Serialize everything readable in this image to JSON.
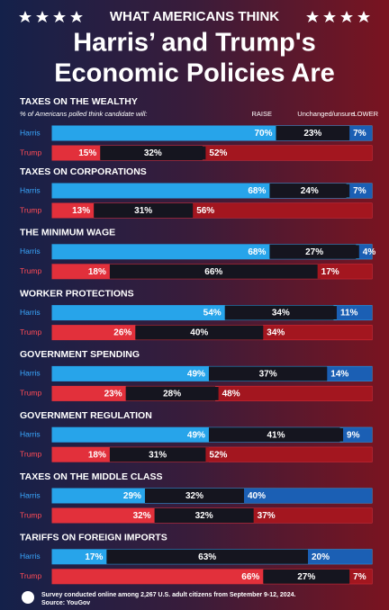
{
  "chart_data": {
    "type": "stacked-bar",
    "kicker": "WHAT AMERICANS THINK",
    "title": [
      "Harris’ and Trump's",
      "Economic Policies Are"
    ],
    "subtitle": "% of Americans polled think candidate will:",
    "legend": [
      "RAISE",
      "Unchanged/unsure",
      "LOWER"
    ],
    "xlim": [
      0,
      100
    ],
    "groups": [
      {
        "title": "TAXES ON THE WEALTHY",
        "rows": [
          {
            "name": "Harris",
            "colors": [
              "#27a4ea",
              "#15151f",
              "#1b5fb4"
            ],
            "values": [
              70,
              23,
              7
            ],
            "value_labels": [
              "70%",
              "23%",
              "7%"
            ]
          },
          {
            "name": "Trump",
            "colors": [
              "#e2303b",
              "#15151f",
              "#a3161f"
            ],
            "values": [
              15,
              32,
              52
            ],
            "value_labels": [
              "15%",
              "32%",
              "52%"
            ]
          }
        ]
      },
      {
        "title": "TAXES ON CORPORATIONS",
        "rows": [
          {
            "name": "Harris",
            "colors": [
              "#27a4ea",
              "#15151f",
              "#1b5fb4"
            ],
            "values": [
              68,
              24,
              7
            ],
            "value_labels": [
              "68%",
              "24%",
              "7%"
            ]
          },
          {
            "name": "Trump",
            "colors": [
              "#e2303b",
              "#15151f",
              "#a3161f"
            ],
            "values": [
              13,
              31,
              56
            ],
            "value_labels": [
              "13%",
              "31%",
              "56%"
            ]
          }
        ]
      },
      {
        "title": "THE MINIMUM WAGE",
        "rows": [
          {
            "name": "Harris",
            "colors": [
              "#27a4ea",
              "#15151f",
              "#1b5fb4"
            ],
            "values": [
              68,
              27,
              4
            ],
            "value_labels": [
              "68%",
              "27%",
              "4%"
            ]
          },
          {
            "name": "Trump",
            "colors": [
              "#e2303b",
              "#15151f",
              "#a3161f"
            ],
            "values": [
              18,
              66,
              17
            ],
            "value_labels": [
              "18%",
              "66%",
              "17%"
            ]
          }
        ]
      },
      {
        "title": "WORKER PROTECTIONS",
        "rows": [
          {
            "name": "Harris",
            "colors": [
              "#27a4ea",
              "#15151f",
              "#1b5fb4"
            ],
            "values": [
              54,
              34,
              11
            ],
            "value_labels": [
              "54%",
              "34%",
              "11%"
            ]
          },
          {
            "name": "Trump",
            "colors": [
              "#e2303b",
              "#15151f",
              "#a3161f"
            ],
            "values": [
              26,
              40,
              34
            ],
            "value_labels": [
              "26%",
              "40%",
              "34%"
            ]
          }
        ]
      },
      {
        "title": "GOVERNMENT SPENDING",
        "rows": [
          {
            "name": "Harris",
            "colors": [
              "#27a4ea",
              "#15151f",
              "#1b5fb4"
            ],
            "values": [
              49,
              37,
              14
            ],
            "value_labels": [
              "49%",
              "37%",
              "14%"
            ]
          },
          {
            "name": "Trump",
            "colors": [
              "#e2303b",
              "#15151f",
              "#a3161f"
            ],
            "values": [
              23,
              28,
              48
            ],
            "value_labels": [
              "23%",
              "28%",
              "48%"
            ]
          }
        ]
      },
      {
        "title": "GOVERNMENT REGULATION",
        "rows": [
          {
            "name": "Harris",
            "colors": [
              "#27a4ea",
              "#15151f",
              "#1b5fb4"
            ],
            "values": [
              49,
              41,
              9
            ],
            "value_labels": [
              "49%",
              "41%",
              "9%"
            ]
          },
          {
            "name": "Trump",
            "colors": [
              "#e2303b",
              "#15151f",
              "#a3161f"
            ],
            "values": [
              18,
              31,
              52
            ],
            "value_labels": [
              "18%",
              "31%",
              "52%"
            ]
          }
        ]
      },
      {
        "title": "TAXES ON THE MIDDLE CLASS",
        "rows": [
          {
            "name": "Harris",
            "colors": [
              "#27a4ea",
              "#15151f",
              "#1b5fb4"
            ],
            "values": [
              29,
              32,
              40
            ],
            "value_labels": [
              "29%",
              "32%",
              "40%"
            ]
          },
          {
            "name": "Trump",
            "colors": [
              "#e2303b",
              "#15151f",
              "#a3161f"
            ],
            "values": [
              32,
              32,
              37
            ],
            "value_labels": [
              "32%",
              "32%",
              "37%"
            ]
          }
        ]
      },
      {
        "title": "TARIFFS ON FOREIGN IMPORTS",
        "rows": [
          {
            "name": "Harris",
            "colors": [
              "#27a4ea",
              "#15151f",
              "#1b5fb4"
            ],
            "values": [
              17,
              63,
              20
            ],
            "value_labels": [
              "17%",
              "63%",
              "20%"
            ]
          },
          {
            "name": "Trump",
            "colors": [
              "#e2303b",
              "#15151f",
              "#a3161f"
            ],
            "values": [
              66,
              27,
              7
            ],
            "value_labels": [
              "66%",
              "27%",
              "7%"
            ]
          }
        ]
      }
    ],
    "footnote": "Survey conducted online among 2,267 U.S. adult citizens from September 9-12, 2024.",
    "source": "Source: YouGov"
  }
}
